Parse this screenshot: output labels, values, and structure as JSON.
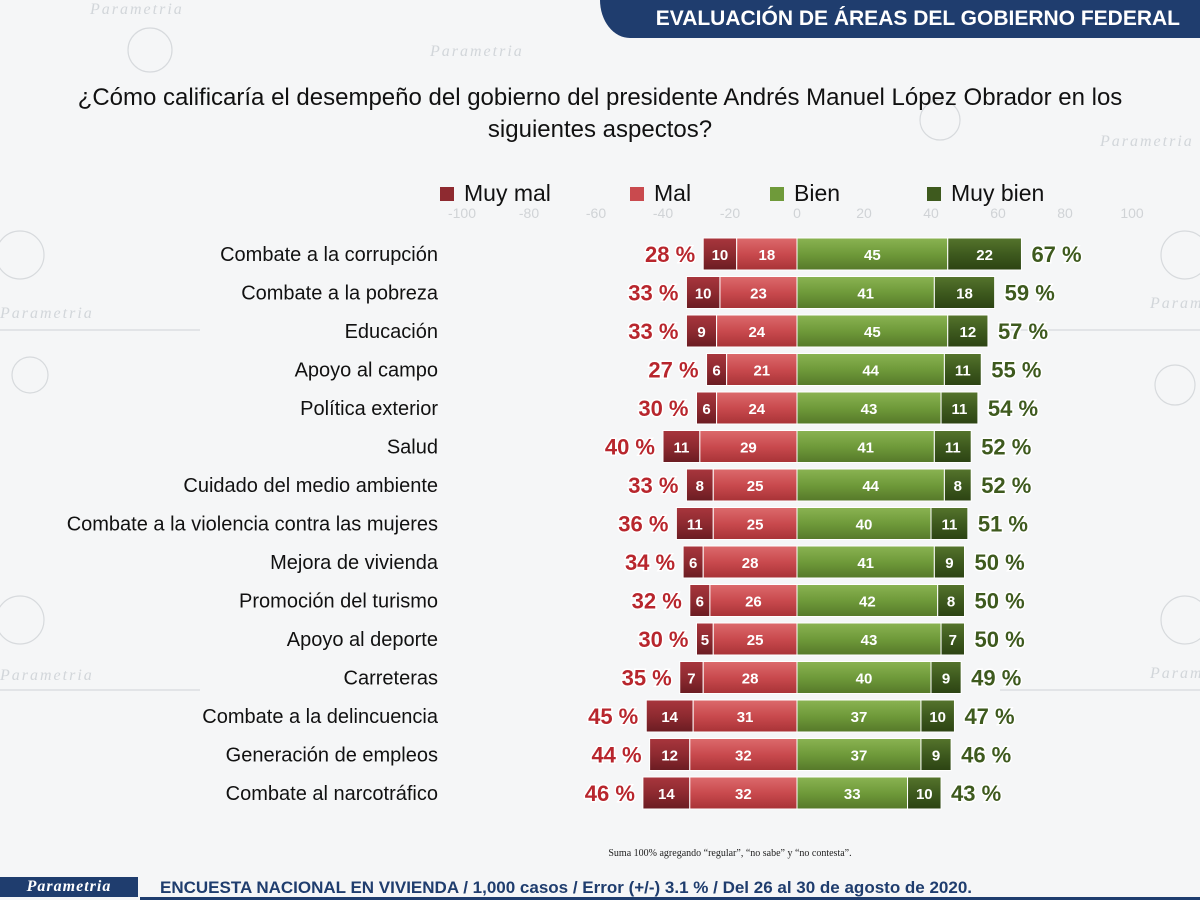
{
  "header": {
    "title": "EVALUACIÓN DE ÁREAS DEL GOBIERNO FEDERAL"
  },
  "question": "¿Cómo calificaría el desempeño del gobierno del presidente Andrés Manuel López Obrador en los siguientes aspectos?",
  "legend": [
    {
      "label": "Muy mal",
      "color": "#8e2a30"
    },
    {
      "label": "Mal",
      "color": "#c94a4e"
    },
    {
      "label": "Bien",
      "color": "#6f9a3a"
    },
    {
      "label": "Muy bien",
      "color": "#3e5a1e"
    }
  ],
  "chart_data": {
    "type": "bar",
    "orientation": "horizontal-diverging",
    "categories": [
      "Combate a la corrupción",
      "Combate a la pobreza",
      "Educación",
      "Apoyo al campo",
      "Política exterior",
      "Salud",
      "Cuidado del medio ambiente",
      "Combate a la violencia contra las mujeres",
      "Mejora de vivienda",
      "Promoción del turismo",
      "Apoyo al deporte",
      "Carreteras",
      "Combate a la delincuencia",
      "Generación de empleos",
      "Combate al narcotráfico"
    ],
    "series": [
      {
        "name": "Muy mal",
        "values": [
          10,
          10,
          9,
          6,
          6,
          11,
          8,
          11,
          6,
          6,
          5,
          7,
          14,
          12,
          14
        ]
      },
      {
        "name": "Mal",
        "values": [
          18,
          23,
          24,
          21,
          24,
          29,
          25,
          25,
          28,
          26,
          25,
          28,
          31,
          32,
          32
        ]
      },
      {
        "name": "Bien",
        "values": [
          45,
          41,
          45,
          44,
          43,
          41,
          44,
          40,
          41,
          42,
          43,
          40,
          37,
          37,
          33
        ]
      },
      {
        "name": "Muy bien",
        "values": [
          22,
          18,
          12,
          11,
          11,
          11,
          8,
          11,
          9,
          8,
          7,
          9,
          10,
          9,
          10
        ]
      }
    ],
    "negative_totals": [
      "28 %",
      "33 %",
      "33 %",
      "27 %",
      "30 %",
      "40 %",
      "33 %",
      "36 %",
      "34 %",
      "32 %",
      "30 %",
      "35 %",
      "45 %",
      "44 %",
      "46 %"
    ],
    "positive_totals": [
      "67 %",
      "59 %",
      "57 %",
      "55 %",
      "54 %",
      "52 %",
      "52 %",
      "51 %",
      "50 %",
      "50 %",
      "50 %",
      "49 %",
      "47 %",
      "46 %",
      "43 %"
    ],
    "axis_ticks": [
      "-100",
      "-80",
      "-60",
      "-40",
      "-20",
      "0",
      "20",
      "40",
      "60",
      "80",
      "100"
    ],
    "xlim": [
      -100,
      100
    ]
  },
  "footnote": "Suma 100% agregando “regular”, “no sabe” y “no contesta”.",
  "footer": {
    "logo": "Parametria",
    "text": "ENCUESTA NACIONAL EN VIVIENDA / 1,000 casos / Error (+/-) 3.1 % / Del 26 al 30 de agosto de 2020."
  },
  "watermark": "Parametria"
}
